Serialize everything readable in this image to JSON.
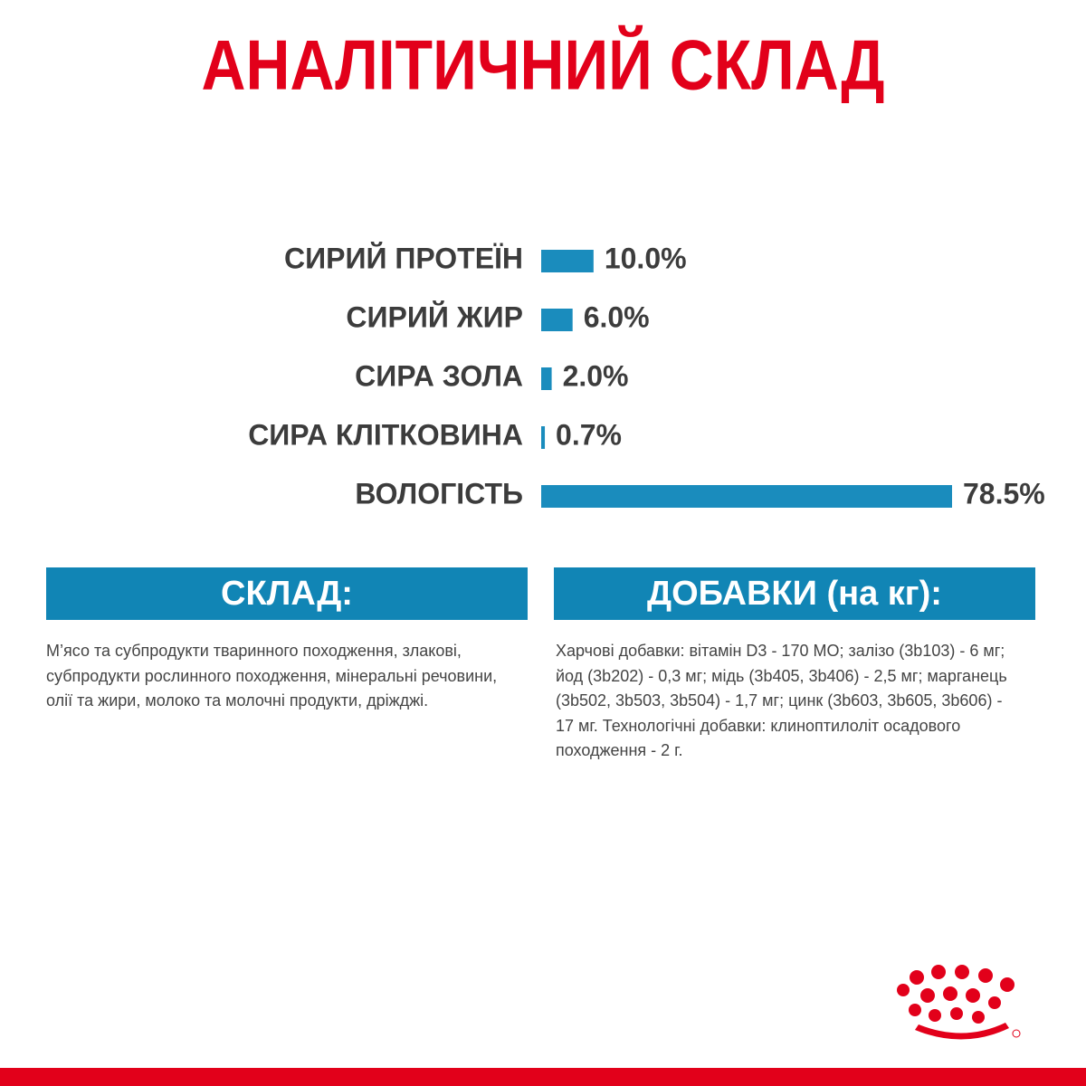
{
  "chart_data": {
    "type": "bar",
    "orientation": "horizontal",
    "title": "АНАЛІТИЧНИЙ СКЛАД",
    "categories": [
      "СИРИЙ ПРОТЕЇН",
      "СИРИЙ ЖИР",
      "СИРА ЗОЛА",
      "СИРА КЛІТКОВИНА",
      "ВОЛОГІСТЬ"
    ],
    "values": [
      10.0,
      6.0,
      2.0,
      0.7,
      78.5
    ],
    "value_labels": [
      "10.0%",
      "6.0%",
      "2.0%",
      "0.7%",
      "78.5%"
    ],
    "color": "#1a8cbd"
  },
  "sections": [
    {
      "title": "СКЛАД:",
      "text": "М’ясо та субпродукти тваринного походження, злакові, субпродукти рослинного походження, мінеральні речовини, олії та жири, молоко та молочні продукти, дріжджі."
    },
    {
      "title": "ДОБАВКИ (на кг):",
      "text": "Харчові добавки: вітамін D3 - 170 МО; залізо (3b103) - 6 мг; йод (3b202) - 0,3 мг; мідь (3b405, 3b406) - 2,5 мг; марганець (3b502, 3b503, 3b504) - 1,7 мг; цинк (3b603, 3b605, 3b606) - 17 мг. Технологічні добавки: клиноптилоліт осадового походження - 2 г."
    }
  ]
}
